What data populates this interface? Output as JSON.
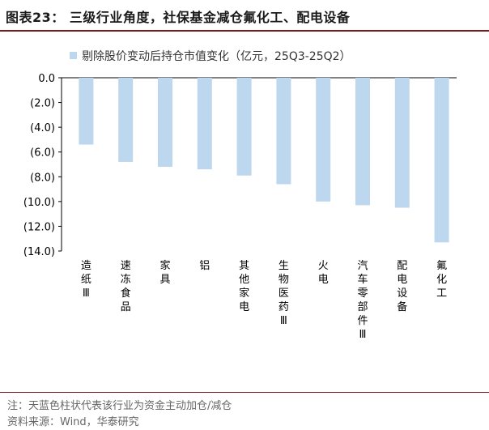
{
  "header": {
    "title": "图表23： 三级行业角度，社保基金减仓氟化工、配电设备"
  },
  "footer": {
    "note": "注：天蓝色柱状代表该行业为资金主动加仓/减仓",
    "source": "资料来源：Wind，华泰研究"
  },
  "colors": {
    "bar": "#bdd7ee",
    "title_rule": "#7a1a1f"
  },
  "chart_data": {
    "type": "bar",
    "categories": [
      "造纸Ⅲ",
      "速冻食品",
      "家具",
      "铝",
      "其他家电",
      "生物医药Ⅲ",
      "火电",
      "汽车零部件Ⅲ",
      "配电设备",
      "氟化工"
    ],
    "series": [
      {
        "name": "剔除股价变动后持仓市值变化（亿元，25Q3-25Q2）",
        "values": [
          -5.4,
          -6.8,
          -7.2,
          -7.4,
          -7.9,
          -8.6,
          -10.0,
          -10.3,
          -10.5,
          -13.3
        ]
      }
    ],
    "yticks": [
      "0.0",
      "(2.0)",
      "(4.0)",
      "(6.0)",
      "(8.0)",
      "(10.0)",
      "(12.0)",
      "(14.0)"
    ],
    "ylim": [
      -14,
      0
    ],
    "legend_position": "top-left",
    "grid": false
  }
}
